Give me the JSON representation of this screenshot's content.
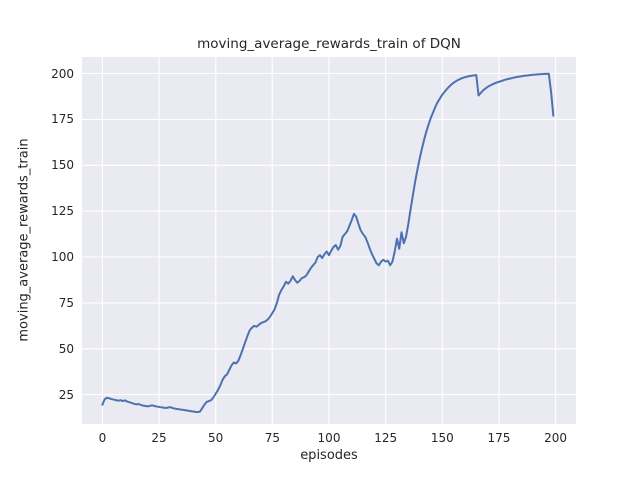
{
  "colors": {
    "figure_background": "#ffffff",
    "axes_background": "#eaeaf2",
    "gridline": "#ffffff",
    "line": "#4c72b0",
    "text": "#262626"
  },
  "chart_data": {
    "type": "line",
    "title": "moving_average_rewards_train of DQN",
    "xlabel": "episodes",
    "ylabel": "moving_average_rewards_train",
    "xlim": [
      -9,
      209
    ],
    "ylim": [
      9,
      209
    ],
    "grid": true,
    "legend": null,
    "xticks": [
      {
        "v": 0,
        "label": "0"
      },
      {
        "v": 25,
        "label": "25"
      },
      {
        "v": 50,
        "label": "50"
      },
      {
        "v": 75,
        "label": "75"
      },
      {
        "v": 100,
        "label": "100"
      },
      {
        "v": 125,
        "label": "125"
      },
      {
        "v": 150,
        "label": "150"
      },
      {
        "v": 175,
        "label": "175"
      },
      {
        "v": 200,
        "label": "200"
      }
    ],
    "yticks": [
      {
        "v": 25,
        "label": "25"
      },
      {
        "v": 50,
        "label": "50"
      },
      {
        "v": 75,
        "label": "75"
      },
      {
        "v": 100,
        "label": "100"
      },
      {
        "v": 125,
        "label": "125"
      },
      {
        "v": 150,
        "label": "150"
      },
      {
        "v": 175,
        "label": "175"
      },
      {
        "v": 200,
        "label": "200"
      }
    ],
    "series": [
      {
        "name": "moving_average_rewards_train",
        "color": "#4c72b0",
        "points": [
          [
            0,
            19.5
          ],
          [
            1,
            22.5
          ],
          [
            2,
            23.3
          ],
          [
            3,
            23.0
          ],
          [
            4,
            22.6
          ],
          [
            5,
            22.3
          ],
          [
            6,
            22.0
          ],
          [
            7,
            21.7
          ],
          [
            8,
            22.0
          ],
          [
            9,
            21.5
          ],
          [
            10,
            21.9
          ],
          [
            11,
            21.2
          ],
          [
            12,
            20.8
          ],
          [
            13,
            20.4
          ],
          [
            14,
            20.0
          ],
          [
            15,
            19.7
          ],
          [
            16,
            19.9
          ],
          [
            17,
            19.4
          ],
          [
            18,
            19.0
          ],
          [
            19,
            18.8
          ],
          [
            20,
            18.6
          ],
          [
            21,
            18.9
          ],
          [
            22,
            19.2
          ],
          [
            23,
            18.8
          ],
          [
            24,
            18.5
          ],
          [
            25,
            18.3
          ],
          [
            26,
            18.1
          ],
          [
            27,
            17.9
          ],
          [
            28,
            17.7
          ],
          [
            29,
            18.0
          ],
          [
            30,
            18.2
          ],
          [
            31,
            17.7
          ],
          [
            32,
            17.4
          ],
          [
            33,
            17.2
          ],
          [
            34,
            17.0
          ],
          [
            35,
            16.8
          ],
          [
            36,
            16.6
          ],
          [
            37,
            16.4
          ],
          [
            38,
            16.2
          ],
          [
            39,
            16.0
          ],
          [
            40,
            15.8
          ],
          [
            41,
            15.6
          ],
          [
            42,
            15.5
          ],
          [
            43,
            15.7
          ],
          [
            44,
            17.5
          ],
          [
            45,
            19.5
          ],
          [
            46,
            21.0
          ],
          [
            47,
            21.5
          ],
          [
            48,
            22.0
          ],
          [
            49,
            23.5
          ],
          [
            50,
            25.5
          ],
          [
            51,
            27.5
          ],
          [
            52,
            30.0
          ],
          [
            53,
            33.0
          ],
          [
            54,
            35.0
          ],
          [
            55,
            36.0
          ],
          [
            56,
            38.5
          ],
          [
            57,
            41.0
          ],
          [
            58,
            42.5
          ],
          [
            59,
            42.0
          ],
          [
            60,
            43.5
          ],
          [
            61,
            46.5
          ],
          [
            62,
            50.0
          ],
          [
            63,
            53.5
          ],
          [
            64,
            57.0
          ],
          [
            65,
            60.0
          ],
          [
            66,
            61.5
          ],
          [
            67,
            62.5
          ],
          [
            68,
            62.0
          ],
          [
            69,
            63.0
          ],
          [
            70,
            64.0
          ],
          [
            71,
            64.5
          ],
          [
            72,
            65.0
          ],
          [
            73,
            66.0
          ],
          [
            74,
            67.5
          ],
          [
            75,
            69.5
          ],
          [
            76,
            71.5
          ],
          [
            77,
            75.0
          ],
          [
            78,
            79.5
          ],
          [
            79,
            82.0
          ],
          [
            80,
            84.0
          ],
          [
            81,
            86.5
          ],
          [
            82,
            85.5
          ],
          [
            83,
            87.0
          ],
          [
            84,
            89.5
          ],
          [
            85,
            87.5
          ],
          [
            86,
            86.0
          ],
          [
            87,
            87.0
          ],
          [
            88,
            88.5
          ],
          [
            89,
            89.0
          ],
          [
            90,
            90.0
          ],
          [
            91,
            92.0
          ],
          [
            92,
            94.0
          ],
          [
            93,
            95.5
          ],
          [
            94,
            97.0
          ],
          [
            95,
            100.0
          ],
          [
            96,
            101.0
          ],
          [
            97,
            99.5
          ],
          [
            98,
            101.5
          ],
          [
            99,
            103.0
          ],
          [
            100,
            101.0
          ],
          [
            101,
            103.5
          ],
          [
            102,
            105.5
          ],
          [
            103,
            106.5
          ],
          [
            104,
            104.0
          ],
          [
            105,
            106.0
          ],
          [
            106,
            111.0
          ],
          [
            107,
            112.5
          ],
          [
            108,
            114.0
          ],
          [
            109,
            117.0
          ],
          [
            110,
            120.0
          ],
          [
            111,
            123.5
          ],
          [
            112,
            122.0
          ],
          [
            113,
            118.0
          ],
          [
            114,
            114.5
          ],
          [
            115,
            112.5
          ],
          [
            116,
            111.0
          ],
          [
            117,
            108.0
          ],
          [
            118,
            104.5
          ],
          [
            119,
            101.5
          ],
          [
            120,
            99.0
          ],
          [
            121,
            96.5
          ],
          [
            122,
            95.5
          ],
          [
            123,
            97.5
          ],
          [
            124,
            98.5
          ],
          [
            125,
            97.5
          ],
          [
            126,
            98.0
          ],
          [
            127,
            95.5
          ],
          [
            128,
            97.5
          ],
          [
            129,
            103.0
          ],
          [
            130,
            110.0
          ],
          [
            131,
            104.5
          ],
          [
            132,
            113.5
          ],
          [
            133,
            107.5
          ],
          [
            134,
            111.0
          ],
          [
            135,
            118.0
          ],
          [
            136,
            126.0
          ],
          [
            137,
            133.5
          ],
          [
            138,
            141.0
          ],
          [
            139,
            147.5
          ],
          [
            140,
            153.5
          ],
          [
            141,
            159.0
          ],
          [
            142,
            164.0
          ],
          [
            143,
            168.5
          ],
          [
            144,
            172.5
          ],
          [
            145,
            176.0
          ],
          [
            146,
            179.0
          ],
          [
            147,
            182.0
          ],
          [
            148,
            184.5
          ],
          [
            149,
            186.5
          ],
          [
            150,
            188.5
          ],
          [
            151,
            190.0
          ],
          [
            152,
            191.5
          ],
          [
            153,
            192.8
          ],
          [
            154,
            194.0
          ],
          [
            155,
            195.0
          ],
          [
            156,
            195.8
          ],
          [
            157,
            196.5
          ],
          [
            158,
            197.1
          ],
          [
            159,
            197.6
          ],
          [
            160,
            198.0
          ],
          [
            161,
            198.3
          ],
          [
            162,
            198.6
          ],
          [
            163,
            198.8
          ],
          [
            164,
            199.0
          ],
          [
            165,
            199.1
          ],
          [
            166,
            188.0
          ],
          [
            167,
            189.5
          ],
          [
            168,
            190.8
          ],
          [
            169,
            191.8
          ],
          [
            170,
            192.7
          ],
          [
            171,
            193.4
          ],
          [
            172,
            194.0
          ],
          [
            173,
            194.6
          ],
          [
            174,
            195.1
          ],
          [
            175,
            195.5
          ],
          [
            176,
            195.9
          ],
          [
            177,
            196.3
          ],
          [
            178,
            196.7
          ],
          [
            179,
            197.0
          ],
          [
            180,
            197.3
          ],
          [
            181,
            197.6
          ],
          [
            182,
            197.9
          ],
          [
            183,
            198.1
          ],
          [
            184,
            198.3
          ],
          [
            185,
            198.5
          ],
          [
            186,
            198.7
          ],
          [
            187,
            198.9
          ],
          [
            188,
            199.0
          ],
          [
            189,
            199.2
          ],
          [
            190,
            199.3
          ],
          [
            191,
            199.4
          ],
          [
            192,
            199.5
          ],
          [
            193,
            199.6
          ],
          [
            194,
            199.7
          ],
          [
            195,
            199.8
          ],
          [
            196,
            199.8
          ],
          [
            197,
            199.9
          ],
          [
            198,
            190.0
          ],
          [
            199,
            177.0
          ]
        ]
      }
    ]
  }
}
